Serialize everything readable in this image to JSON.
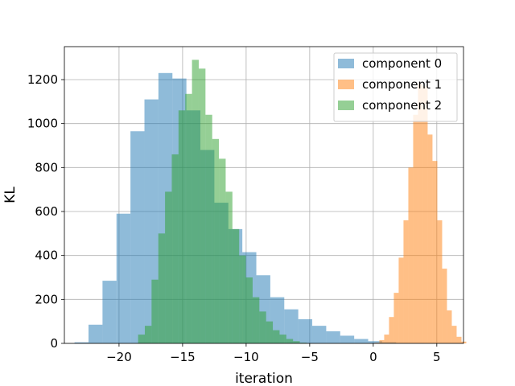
{
  "chart_data": {
    "type": "bar",
    "subtype": "histogram-overlay",
    "xlabel": "iteration",
    "ylabel": "KL",
    "xlim": [
      -24.3,
      7.1
    ],
    "ylim": [
      0,
      1350
    ],
    "xticks": [
      -20,
      -15,
      -10,
      -5,
      0,
      5
    ],
    "xtick_labels": [
      "−20",
      "−15",
      "−10",
      "−5",
      "0",
      "5"
    ],
    "yticks": [
      0,
      200,
      400,
      600,
      800,
      1000,
      1200
    ],
    "ytick_labels": [
      "0",
      "200",
      "400",
      "600",
      "800",
      "1000",
      "1200"
    ],
    "grid": true,
    "legend_position": "top-right",
    "series": [
      {
        "name": "component 0",
        "color": "#1f77b4",
        "alpha": 0.5,
        "bin_start": -23.5,
        "bin_width": 1.1,
        "counts": [
          5,
          85,
          285,
          590,
          965,
          1110,
          1230,
          1205,
          1060,
          880,
          640,
          520,
          415,
          310,
          210,
          155,
          110,
          80,
          55,
          35,
          20,
          10,
          5,
          2,
          1
        ]
      },
      {
        "name": "component 1",
        "color": "#ff7f0e",
        "alpha": 0.5,
        "bin_start": 0.1,
        "bin_width": 0.38,
        "counts": [
          3,
          15,
          40,
          120,
          230,
          390,
          560,
          800,
          1040,
          1180,
          1170,
          950,
          830,
          560,
          340,
          150,
          80,
          30,
          8
        ]
      },
      {
        "name": "component 2",
        "color": "#2ca02c",
        "alpha": 0.5,
        "bin_start": -18.5,
        "bin_width": 0.53,
        "counts": [
          40,
          80,
          290,
          500,
          690,
          860,
          1060,
          1135,
          1290,
          1250,
          1040,
          930,
          840,
          690,
          520,
          400,
          300,
          210,
          145,
          100,
          60,
          40,
          20,
          10,
          3
        ]
      }
    ]
  }
}
